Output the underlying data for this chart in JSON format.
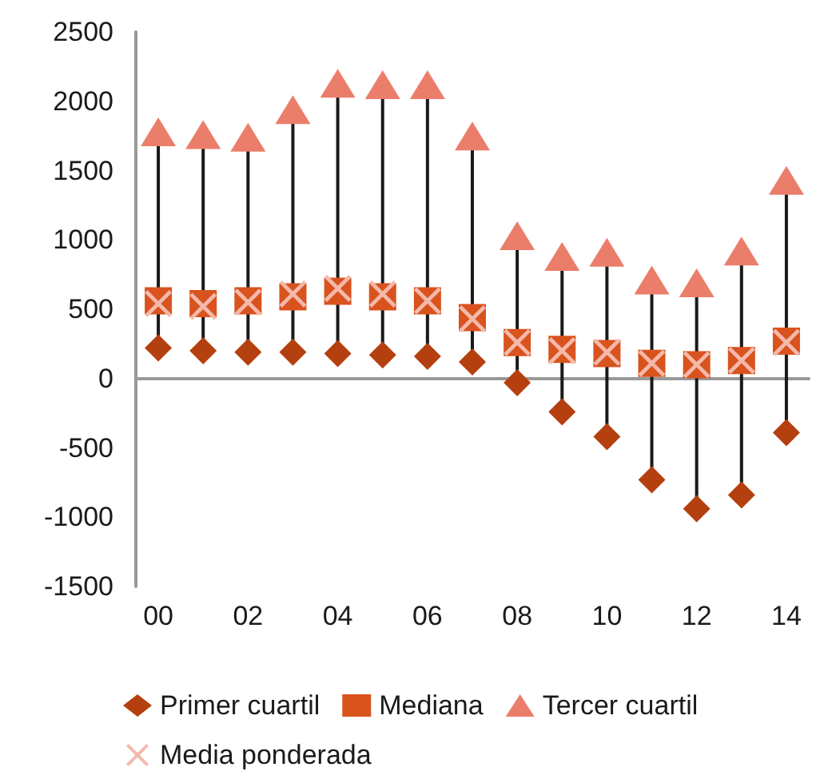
{
  "chart_data": {
    "type": "scatter",
    "categories": [
      "00",
      null,
      "02",
      null,
      "04",
      null,
      "06",
      null,
      "08",
      null,
      "10",
      null,
      "12",
      null,
      "14"
    ],
    "ylim": [
      -1500,
      2500
    ],
    "yticks": [
      -1500,
      -1000,
      -500,
      0,
      500,
      1000,
      1500,
      2000,
      2500
    ],
    "legend": "bottom",
    "series": [
      {
        "name": "Primer cuartil",
        "color": "#b5400f",
        "marker": "diamond",
        "values": [
          220,
          200,
          190,
          190,
          180,
          170,
          160,
          120,
          -30,
          -240,
          -420,
          -730,
          -940,
          -840,
          -390
        ]
      },
      {
        "name": "Mediana",
        "color": "#d9531e",
        "marker": "square",
        "values": [
          560,
          540,
          560,
          590,
          630,
          590,
          560,
          440,
          260,
          210,
          180,
          110,
          100,
          130,
          270
        ]
      },
      {
        "name": "Tercer cuartil",
        "color": "#eb7d6b",
        "marker": "triangle",
        "values": [
          1780,
          1760,
          1740,
          1940,
          2130,
          2120,
          2120,
          1750,
          1030,
          880,
          910,
          710,
          690,
          920,
          1430
        ]
      },
      {
        "name": "Media ponderada",
        "color": "#f4b9aa",
        "marker": "cross",
        "values": [
          540,
          520,
          550,
          610,
          650,
          610,
          560,
          430,
          260,
          200,
          190,
          110,
          100,
          130,
          260
        ]
      }
    ]
  }
}
